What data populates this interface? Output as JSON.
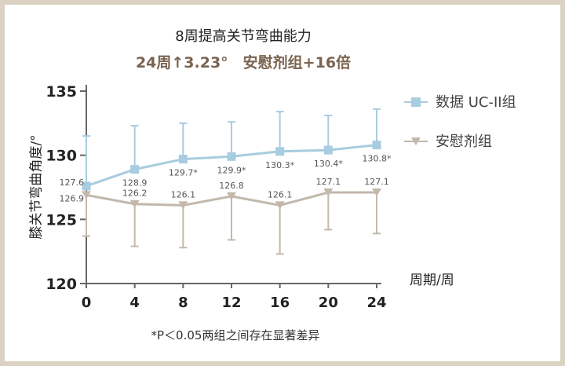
{
  "chart_data": {
    "type": "line",
    "title": "8周提高关节弯曲能力",
    "subtitle": "24周↑3.23°　安慰剂组+16倍",
    "xlabel": "周期/周",
    "ylabel": "膝关节弯曲角度/°",
    "x": [
      0,
      4,
      8,
      12,
      16,
      20,
      24
    ],
    "xlim": [
      0,
      24
    ],
    "ylim": [
      120,
      135
    ],
    "yticks": [
      120,
      125,
      130,
      135
    ],
    "grid": false,
    "legend_position": "right",
    "series": [
      {
        "name": "数据 UC-II组",
        "color": "#a8cce0",
        "marker": "square",
        "values": [
          127.6,
          128.9,
          129.7,
          129.9,
          130.3,
          130.4,
          130.8
        ],
        "error_upper": [
          131.5,
          132.3,
          132.5,
          132.6,
          133.4,
          133.1,
          133.6
        ],
        "labels": [
          "127.6",
          "128.9",
          "129.7*",
          "129.9*",
          "130.3*",
          "130.4*",
          "130.8*"
        ]
      },
      {
        "name": "安慰剂组",
        "color": "#c2b8ab",
        "marker": "triangle-down",
        "values": [
          126.9,
          126.2,
          126.1,
          126.8,
          126.1,
          127.1,
          127.1
        ],
        "error_lower": [
          123.7,
          122.9,
          122.8,
          123.4,
          122.3,
          124.2,
          123.9
        ],
        "labels": [
          "126.9",
          "126.2",
          "126.1",
          "126.8",
          "126.1",
          "127.1",
          "127.1"
        ]
      }
    ],
    "footnote": "*P＜0.05两组之间存在显著差异"
  }
}
